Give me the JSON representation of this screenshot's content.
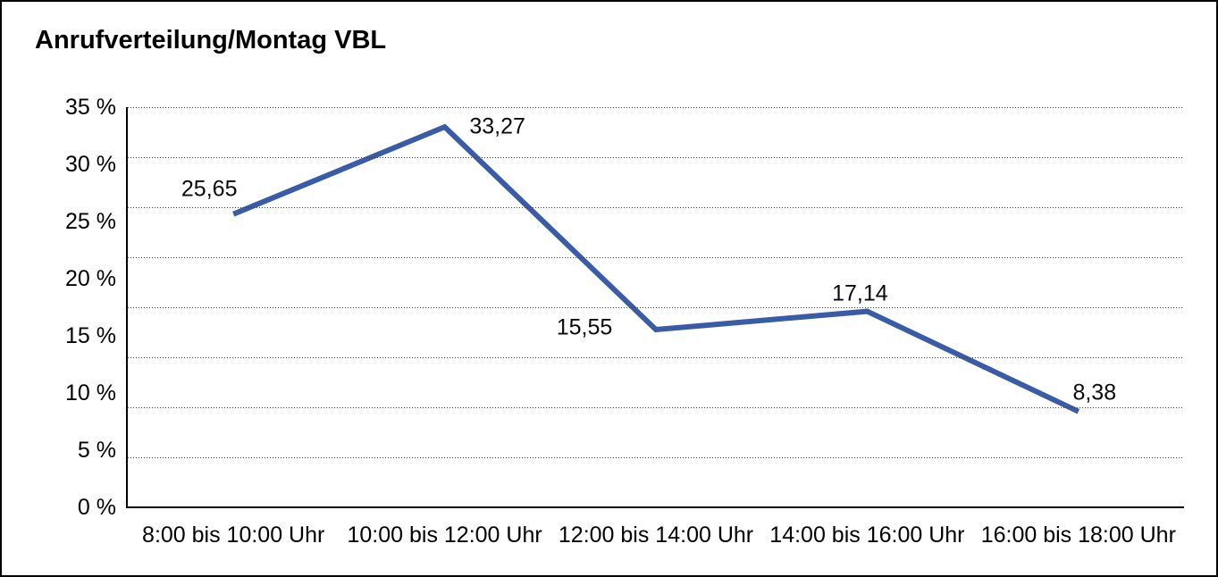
{
  "window": {
    "background": "#ffffff",
    "border_color": "#000000"
  },
  "chart_data": {
    "type": "line",
    "title": "Anrufverteilung/Montag VBL",
    "categories": [
      "8:00 bis 10:00 Uhr",
      "10:00 bis 12:00 Uhr",
      "12:00 bis 14:00 Uhr",
      "14:00 bis 16:00 Uhr",
      "16:00 bis 18:00 Uhr"
    ],
    "values": [
      25.65,
      33.27,
      15.55,
      17.14,
      8.38
    ],
    "data_labels": [
      "25,65",
      "33,27",
      "15,55",
      "17,14",
      "8,38"
    ],
    "y_ticks": [
      "0 %",
      "5 %",
      "10 %",
      "15 %",
      "20 %",
      "25 %",
      "30 %",
      "35 %"
    ],
    "ylim": [
      0,
      35
    ],
    "xlabel": "",
    "ylabel": "",
    "legend": "none",
    "grid": "horizontal-dotted",
    "gridline_count": 9,
    "line_color": "#3A5CA6",
    "line_width": 6,
    "axis_color": "#000000",
    "text_color": "#000000"
  }
}
